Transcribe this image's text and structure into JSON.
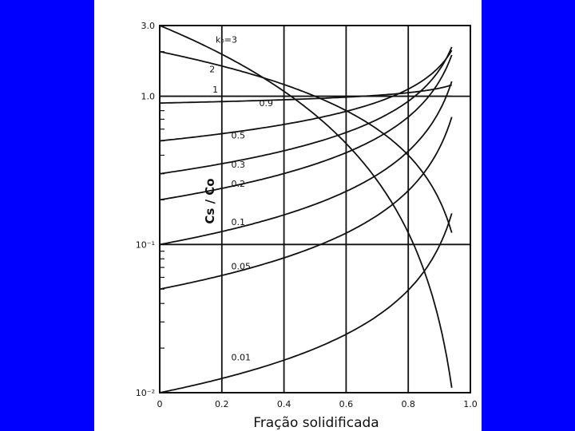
{
  "chart_data": {
    "type": "line",
    "title": "",
    "xlabel": "Fração solidificada",
    "ylabel": "Cs / Co",
    "xlim": [
      0,
      1.0
    ],
    "ylim": [
      0.01,
      3.0
    ],
    "y_scale": "log",
    "grid": true,
    "x_ticks": [
      {
        "value": 0,
        "label": "0"
      },
      {
        "value": 0.2,
        "label": "0.2"
      },
      {
        "value": 0.4,
        "label": "0.4"
      },
      {
        "value": 0.6,
        "label": "0.6"
      },
      {
        "value": 0.8,
        "label": "0.8"
      },
      {
        "value": 1.0,
        "label": "1.0"
      }
    ],
    "y_ticks": [
      {
        "value": 3.0,
        "label": "3.0"
      },
      {
        "value": 1.0,
        "label": "1.0"
      },
      {
        "value": 0.1,
        "label": "10⁻¹"
      },
      {
        "value": 0.01,
        "label": "10⁻²"
      }
    ],
    "curve_k_values": [
      3,
      2,
      1,
      0.9,
      0.5,
      0.3,
      0.2,
      0.1,
      0.05,
      0.01
    ],
    "curve_labels": [
      {
        "k": 3,
        "text": "k₀=3"
      },
      {
        "k": 2,
        "text": "2"
      },
      {
        "k": 1,
        "text": "1"
      },
      {
        "k": 0.9,
        "text": "0.9"
      },
      {
        "k": 0.5,
        "text": "0.5"
      },
      {
        "k": 0.3,
        "text": "0.3"
      },
      {
        "k": 0.2,
        "text": "0.2"
      },
      {
        "k": 0.1,
        "text": "0.1"
      },
      {
        "k": 0.05,
        "text": "0.05"
      },
      {
        "k": 0.01,
        "text": "0.01"
      }
    ]
  }
}
